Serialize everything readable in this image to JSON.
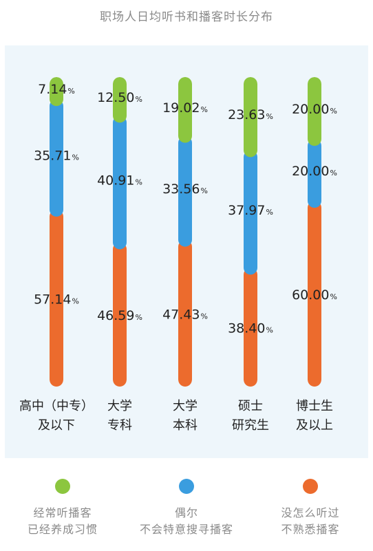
{
  "title": "职场人日均听书和播客时长分布",
  "colors": {
    "habit": "#8cc63f",
    "occasional": "#3a9ddf",
    "unfamiliar": "#ec6b2d",
    "text": "#222222",
    "muted": "#8a8a8a",
    "panel": "#eef6fb"
  },
  "legend": [
    {
      "key": "habit",
      "lines": [
        "经常听播客",
        "已经养成习惯"
      ]
    },
    {
      "key": "occasional",
      "lines": [
        "偶尔",
        "不会特意搜寻播客"
      ]
    },
    {
      "key": "unfamiliar",
      "lines": [
        "没怎么听过",
        "不熟悉播客"
      ]
    }
  ],
  "chart_data": {
    "type": "bar",
    "stacked": true,
    "percent_unit": "%",
    "categories": [
      [
        "高中（中专）",
        "及以下"
      ],
      [
        "大学",
        "专科"
      ],
      [
        "大学",
        "本科"
      ],
      [
        "硕士",
        "研究生"
      ],
      [
        "博士生",
        "及以上"
      ]
    ],
    "series": [
      {
        "key": "unfamiliar",
        "name": "没怎么听过 不熟悉播客",
        "values": [
          57.14,
          46.59,
          47.43,
          38.4,
          60.0
        ]
      },
      {
        "key": "occasional",
        "name": "偶尔 不会特意搜寻播客",
        "values": [
          35.71,
          40.91,
          33.56,
          37.97,
          20.0
        ]
      },
      {
        "key": "habit",
        "name": "经常听播客 已经养成习惯",
        "values": [
          7.14,
          12.5,
          19.02,
          23.63,
          20.0
        ]
      }
    ],
    "ylim": [
      0,
      100
    ]
  }
}
